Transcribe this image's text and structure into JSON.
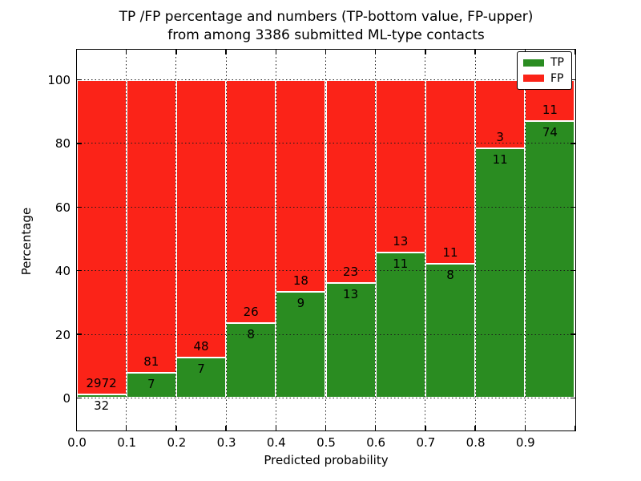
{
  "figure": {
    "title_line1": "TP /FP percentage and numbers (TP-bottom value, FP-upper)",
    "title_line2": "from among 3386 submitted ML-type contacts"
  },
  "chart_data": {
    "type": "bar",
    "variant": "stacked-percentage",
    "title": "TP /FP percentage and numbers (TP-bottom value, FP-upper)\nfrom among 3386 submitted ML-type contacts",
    "xlabel": "Predicted probability",
    "ylabel": "Percentage",
    "total_contacts": 3386,
    "bin_left_edges": [
      0.0,
      0.1,
      0.2,
      0.3,
      0.4,
      0.5,
      0.6,
      0.7,
      0.8,
      0.9
    ],
    "bin_width": 0.1,
    "series": [
      {
        "name": "TP",
        "color": "#2a8c21",
        "counts": [
          32,
          7,
          7,
          8,
          9,
          13,
          11,
          8,
          11,
          74
        ]
      },
      {
        "name": "FP",
        "color": "#fb2318",
        "counts": [
          2972,
          81,
          48,
          26,
          18,
          23,
          13,
          11,
          3,
          11
        ]
      }
    ],
    "tp_percent_heights": [
      1.1,
      8.0,
      12.7,
      23.5,
      33.3,
      36.1,
      45.8,
      42.1,
      78.6,
      87.1
    ],
    "bars_stack_to_percent": 100,
    "xticks": [
      "0.0",
      "0.1",
      "0.2",
      "0.3",
      "0.4",
      "0.5",
      "0.6",
      "0.7",
      "0.8",
      "0.9"
    ],
    "yticks": [
      0,
      20,
      40,
      60,
      80,
      100
    ],
    "xlim": [
      0.0,
      1.0
    ],
    "ylim": [
      -10,
      110
    ],
    "grid": "dotted-both-axes",
    "legend": {
      "position": "upper-right",
      "entries": [
        {
          "label": "TP",
          "color": "#2a8c21"
        },
        {
          "label": "FP",
          "color": "#fb2318"
        }
      ]
    }
  }
}
